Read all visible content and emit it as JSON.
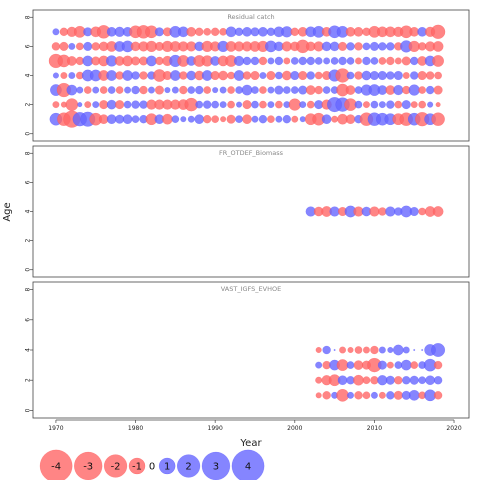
{
  "chart_data": [
    {
      "type": "scatter",
      "title": "Residual catch",
      "ages": [
        1,
        2,
        3,
        4,
        5,
        6,
        7
      ],
      "years": [
        1970,
        1971,
        1972,
        1973,
        1974,
        1975,
        1976,
        1977,
        1978,
        1979,
        1980,
        1981,
        1982,
        1983,
        1984,
        1985,
        1986,
        1987,
        1988,
        1989,
        1990,
        1991,
        1992,
        1993,
        1994,
        1995,
        1996,
        1997,
        1998,
        1999,
        2000,
        2001,
        2002,
        2003,
        2004,
        2005,
        2006,
        2007,
        2008,
        2009,
        2010,
        2011,
        2012,
        2013,
        2014,
        2015,
        2016,
        2017,
        2018
      ],
      "residuals": [
        [
          1.4,
          -1.6,
          -2.6,
          1.8,
          2.0,
          -1.4,
          -0.8,
          0.8,
          0.7,
          0.8,
          0.5,
          0.6,
          -1.2,
          0.8,
          -1.0,
          0.5,
          0.3,
          0.4,
          0.8,
          -0.6,
          -0.5,
          -0.3,
          -0.7,
          0.5,
          -0.8,
          0.4,
          0.6,
          -0.5,
          0.4,
          0.6,
          -0.4,
          0.3,
          -1.2,
          -1.4,
          0.8,
          -0.4,
          -1.0,
          -0.8,
          0.6,
          -1.6,
          1.6,
          1.4,
          1.2,
          -1.2,
          -1.6,
          1.4,
          -1.8,
          1.2,
          -1.6
        ],
        [
          -0.4,
          -0.3,
          -1.4,
          0.2,
          -0.4,
          0.4,
          -0.7,
          0.8,
          -0.7,
          0.5,
          0.6,
          0.6,
          -0.9,
          -0.9,
          -0.9,
          -0.9,
          -1.0,
          -1.6,
          0.5,
          0.6,
          0.5,
          0.4,
          -0.5,
          0.3,
          -0.7,
          0.5,
          -0.5,
          0.4,
          -0.5,
          0.4,
          -1.3,
          0.4,
          -0.5,
          0.7,
          -0.9,
          2.0,
          1.8,
          -1.4,
          0.5,
          -0.4,
          0.5,
          0.4,
          0.6,
          -0.5,
          0.7,
          -0.4,
          -0.5,
          0.3,
          -0.2
        ],
        [
          1.2,
          -1.8,
          1.0,
          0.4,
          -0.5,
          0.4,
          -0.5,
          0.5,
          -0.5,
          0.4,
          0.6,
          -0.6,
          0.4,
          -0.7,
          0.3,
          0.4,
          -0.6,
          0.5,
          0.6,
          -0.5,
          0.3,
          0.4,
          -0.5,
          0.5,
          1.0,
          0.5,
          -0.5,
          0.4,
          0.7,
          0.5,
          0.5,
          0.7,
          -0.8,
          -0.6,
          0.5,
          0.5,
          -1.4,
          -0.8,
          0.5,
          1.1,
          1.2,
          0.8,
          -0.8,
          0.9,
          -0.6,
          1.1,
          -0.5,
          0.6,
          -0.7
        ],
        [
          0.3,
          -0.4,
          0.4,
          -0.5,
          1.2,
          1.2,
          -1.0,
          1.0,
          -0.6,
          1.0,
          0.6,
          -0.6,
          0.6,
          -1.4,
          -0.7,
          1.0,
          -0.6,
          0.8,
          -0.8,
          1.0,
          -0.7,
          -0.8,
          -0.5,
          1.0,
          -0.6,
          -0.7,
          0.4,
          -0.7,
          0.5,
          -0.8,
          0.7,
          -0.7,
          0.6,
          -0.5,
          -0.7,
          1.3,
          -1.8,
          0.5,
          -0.6,
          0.8,
          0.7,
          0.7,
          0.6,
          0.7,
          -0.4,
          0.6,
          -0.7,
          -0.6,
          -0.5
        ],
        [
          -1.8,
          -1.4,
          -0.8,
          -0.6,
          1.0,
          -0.7,
          -1.0,
          1.1,
          -0.8,
          -1.0,
          -0.7,
          -0.7,
          1.0,
          -0.6,
          -0.9,
          1.3,
          -1.2,
          0.8,
          -1.2,
          -1.1,
          0.8,
          -1.0,
          -1.2,
          0.9,
          0.6,
          0.6,
          -0.6,
          0.4,
          0.6,
          -0.4,
          0.5,
          0.6,
          0.6,
          0.5,
          0.4,
          0.5,
          0.6,
          0.5,
          -0.4,
          0.6,
          0.5,
          -0.5,
          -0.6,
          -0.4,
          -0.7,
          0.6,
          -0.8,
          1.0,
          -1.2
        ],
        [
          -0.6,
          -0.7,
          0.4,
          -0.5,
          0.7,
          -0.6,
          -0.8,
          -1.0,
          1.0,
          1.2,
          -0.8,
          -0.9,
          -1.1,
          -0.7,
          -1.1,
          -1.0,
          -0.9,
          -0.9,
          0.8,
          -1.1,
          -0.9,
          1.1,
          -1.0,
          -0.9,
          -0.9,
          -1.0,
          -1.1,
          1.2,
          0.8,
          -0.9,
          -0.8,
          -1.6,
          -0.8,
          -0.9,
          0.8,
          0.8,
          -0.7,
          0.6,
          -0.6,
          0.5,
          0.7,
          0.6,
          0.6,
          -0.6,
          1.3,
          -1.1,
          -0.6,
          -0.9,
          -1.0
        ],
        [
          0.4,
          -0.6,
          -0.9,
          -1.2,
          0.7,
          -1.0,
          -1.6,
          0.8,
          0.9,
          0.8,
          -1.4,
          -1.6,
          -1.4,
          0.7,
          -0.7,
          1.2,
          1.0,
          -0.8,
          -0.6,
          -0.5,
          -0.6,
          -0.5,
          1.0,
          0.6,
          0.8,
          0.7,
          0.8,
          0.6,
          1.0,
          1.1,
          -0.6,
          -0.8,
          1.0,
          1.2,
          -0.8,
          1.4,
          1.2,
          -0.8,
          -0.8,
          -0.6,
          -1.2,
          -1.0,
          -1.0,
          -0.9,
          -1.4,
          -0.8,
          0.8,
          -0.9,
          -1.8
        ]
      ],
      "xlim": [
        1968,
        2021
      ],
      "ylim": [
        -0.5,
        8.5
      ],
      "yticks": [
        0,
        2,
        4,
        6,
        8
      ]
    },
    {
      "type": "scatter",
      "title": "FR_OTDEF_Biomass",
      "ages": [
        4
      ],
      "years": [
        2002,
        2003,
        2004,
        2005,
        2006,
        2007,
        2008,
        2009,
        2010,
        2011,
        2012,
        2013,
        2014,
        2015,
        2016,
        2017,
        2018
      ],
      "residuals": [
        [
          0.9,
          -0.8,
          -1.0,
          0.9,
          -0.7,
          1.2,
          -0.9,
          0.8,
          -0.9,
          -0.6,
          0.9,
          0.6,
          1.2,
          0.7,
          -0.5,
          -1.0,
          -1.0
        ]
      ],
      "xlim": [
        1968,
        2021
      ],
      "ylim": [
        -0.5,
        8.5
      ],
      "yticks": [
        0,
        2,
        4,
        6,
        8
      ]
    },
    {
      "type": "scatter",
      "title": "VAST_IGFS_EVHOE",
      "ages": [
        1,
        2,
        3,
        4
      ],
      "years": [
        2003,
        2004,
        2005,
        2006,
        2007,
        2008,
        2009,
        2010,
        2011,
        2012,
        2013,
        2014,
        2015,
        2016,
        2017,
        2018
      ],
      "residuals": [
        [
          -0.3,
          -0.6,
          0.4,
          -1.4,
          0.4,
          -0.6,
          -0.5,
          0.4,
          -0.4,
          0.6,
          -0.7,
          0.7,
          1.0,
          -0.5,
          1.2,
          -0.6
        ],
        [
          -0.4,
          -0.9,
          -1.2,
          0.8,
          0.6,
          -1.0,
          -0.5,
          -0.6,
          0.9,
          0.7,
          -0.6,
          0.6,
          0.7,
          0.5,
          0.8,
          0.6
        ],
        [
          0.4,
          -0.6,
          1.0,
          -1.2,
          0.5,
          -0.8,
          -0.7,
          -1.8,
          0.7,
          -0.4,
          0.5,
          1.0,
          -0.5,
          0.5,
          1.4,
          -0.6
        ],
        [
          -0.3,
          0.6,
          0.0,
          -0.4,
          -0.3,
          -0.5,
          -0.4,
          -0.6,
          0.4,
          0.3,
          1.0,
          0.4,
          0.0,
          0.0,
          1.2,
          1.7
        ]
      ],
      "xlim": [
        1968,
        2021
      ],
      "ylim": [
        -0.5,
        8.5
      ],
      "yticks": [
        0,
        2,
        4,
        6,
        8
      ]
    }
  ],
  "shared": {
    "xlabel": "Year",
    "ylabel": "Age",
    "xticks": [
      1970,
      1980,
      1990,
      2000,
      2010,
      2020
    ],
    "legend": {
      "values": [
        -4,
        -3,
        -2,
        -1,
        0,
        1,
        2,
        3,
        4
      ],
      "placement": "bottom-left"
    },
    "colors": {
      "negative": "#ff6666",
      "positive": "#6666ff",
      "text": "#444444",
      "frame": "#444444"
    }
  }
}
